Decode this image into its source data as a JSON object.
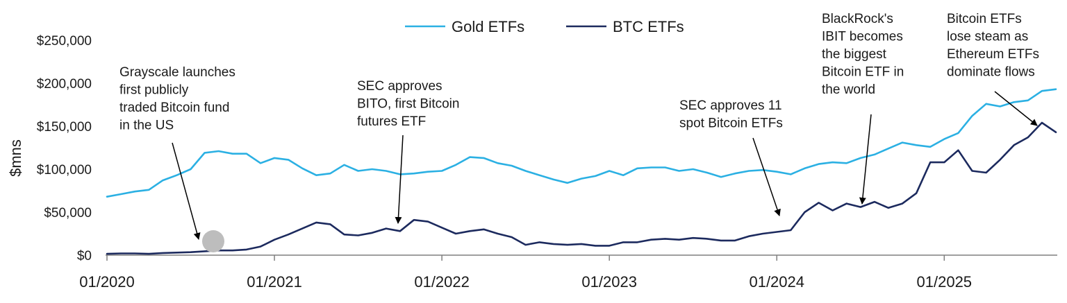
{
  "chart_data": {
    "type": "line",
    "title": "",
    "xlabel": "",
    "ylabel": "$mns",
    "x_ticks": [
      "01/2020",
      "01/2021",
      "01/2022",
      "01/2023",
      "01/2024",
      "01/2025"
    ],
    "y_ticks": [
      "$0",
      "$50,000",
      "$100,000",
      "$150,000",
      "$200,000",
      "$250,000"
    ],
    "ylim": [
      0,
      250000
    ],
    "x_domain_months": [
      0,
      68
    ],
    "grid": false,
    "legend_position": "top-center",
    "series": [
      {
        "name": "Gold ETFs",
        "color": "#2bb0e3",
        "x": [
          0,
          1,
          2,
          3,
          4,
          5,
          6,
          7,
          8,
          9,
          10,
          11,
          12,
          13,
          14,
          15,
          16,
          17,
          18,
          19,
          20,
          21,
          22,
          23,
          24,
          25,
          26,
          27,
          28,
          29,
          30,
          31,
          32,
          33,
          34,
          35,
          36,
          37,
          38,
          39,
          40,
          41,
          42,
          43,
          44,
          45,
          46,
          47,
          48,
          49,
          50,
          51,
          52,
          53,
          54,
          55,
          56,
          57,
          58,
          59,
          60,
          61,
          62,
          63,
          64,
          65,
          66,
          67,
          68
        ],
        "y": [
          68000,
          71000,
          74000,
          76000,
          87000,
          93000,
          100000,
          119000,
          121000,
          118000,
          118000,
          107000,
          113000,
          111000,
          101000,
          93000,
          95000,
          105000,
          98000,
          100000,
          98000,
          94000,
          95000,
          97000,
          98000,
          105000,
          114000,
          113000,
          107000,
          104000,
          98000,
          93000,
          88000,
          84000,
          89000,
          92000,
          98000,
          93000,
          101000,
          102000,
          102000,
          98000,
          100000,
          96000,
          91000,
          95000,
          98000,
          99000,
          97000,
          94000,
          101000,
          106000,
          108000,
          107000,
          113000,
          117000,
          124000,
          131000,
          128000,
          126000,
          135000,
          142000,
          162000,
          176000,
          173000,
          178000,
          180000,
          191000,
          193000
        ]
      },
      {
        "name": "BTC ETFs",
        "color": "#1c2a5e",
        "x": [
          0,
          1,
          2,
          3,
          4,
          5,
          6,
          7,
          8,
          9,
          10,
          11,
          12,
          13,
          14,
          15,
          16,
          17,
          18,
          19,
          20,
          21,
          22,
          23,
          24,
          25,
          26,
          27,
          28,
          29,
          30,
          31,
          32,
          33,
          34,
          35,
          36,
          37,
          38,
          39,
          40,
          41,
          42,
          43,
          44,
          45,
          46,
          47,
          48,
          49,
          50,
          51,
          52,
          53,
          54,
          55,
          56,
          57,
          58,
          59,
          60,
          61,
          62,
          63,
          64,
          65,
          66,
          67,
          68
        ],
        "y": [
          1500,
          2000,
          2000,
          1500,
          2500,
          3000,
          3500,
          4500,
          5500,
          5500,
          6500,
          10000,
          18000,
          24000,
          31000,
          38000,
          36000,
          24000,
          23000,
          26000,
          31000,
          28000,
          41000,
          39000,
          32000,
          25000,
          28000,
          30000,
          25000,
          21000,
          12000,
          15000,
          13000,
          12000,
          13000,
          11000,
          11000,
          15000,
          15000,
          18000,
          19000,
          18000,
          20000,
          19000,
          17000,
          17000,
          22000,
          25000,
          27000,
          29000,
          50000,
          61000,
          52000,
          60000,
          56000,
          62000,
          55000,
          60000,
          72000,
          108000,
          108000,
          122000,
          98000,
          96000,
          111000,
          128000,
          137000,
          154000,
          143000
        ]
      }
    ],
    "annotations": [
      {
        "lines": [
          "Grayscale launches",
          "first publicly",
          "traded Bitcoin fund",
          "in the US"
        ]
      },
      {
        "lines": [
          "SEC approves",
          "BITO, first Bitcoin",
          "futures ETF"
        ]
      },
      {
        "lines": [
          "SEC approves 11",
          "spot Bitcoin ETFs"
        ]
      },
      {
        "lines": [
          "BlackRock's",
          "IBIT becomes",
          "the biggest",
          "Bitcoin ETF in",
          "the world"
        ]
      },
      {
        "lines": [
          "Bitcoin ETFs",
          "lose steam as",
          "Ethereum ETFs",
          "dominate flows"
        ]
      }
    ]
  }
}
